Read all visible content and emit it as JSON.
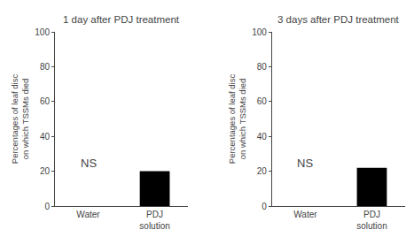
{
  "chart_data": [
    {
      "type": "bar",
      "title": "1 day after PDJ treatment",
      "categories": [
        "Water",
        "PDJ\nsolution"
      ],
      "values": [
        0,
        20
      ],
      "color": "#000000",
      "ylabel": "Percentages of leaf disc\non which TSSMs died",
      "ylim": [
        0,
        100
      ],
      "yticks": [
        0,
        20,
        40,
        60,
        80,
        100
      ],
      "grid": false,
      "annotations": [
        {
          "text": "NS",
          "x": "Water",
          "y": 20
        }
      ]
    },
    {
      "type": "bar",
      "title": "3 days after PDJ treatment",
      "categories": [
        "Water",
        "PDJ\nsolution"
      ],
      "values": [
        0,
        22
      ],
      "color": "#000000",
      "ylabel": "Percentages of leaf disc\non which TSSMs died",
      "ylim": [
        0,
        100
      ],
      "yticks": [
        0,
        20,
        40,
        60,
        80,
        100
      ],
      "grid": false,
      "annotations": [
        {
          "text": "NS",
          "x": "Water",
          "y": 20
        }
      ]
    }
  ]
}
